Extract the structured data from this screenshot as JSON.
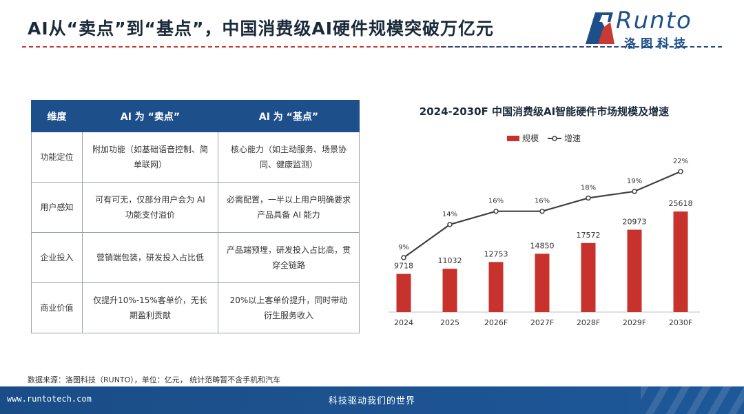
{
  "header": {
    "title": "AI从“卖点”到“基点”，中国消费级AI硬件规模突破万亿元",
    "logo_brand": "Runto",
    "logo_cn": "洛图科技"
  },
  "table": {
    "headers": [
      "维度",
      "AI 为 “卖点”",
      "AI 为 “基点”"
    ],
    "rows": [
      [
        "功能定位",
        "附加功能（如基础语音控制、简单联网）",
        "核心能力（如主动服务、场景协同、健康监测）"
      ],
      [
        "用户感知",
        "可有可无，仅部分用户会为 AI 功能支付溢价",
        "必需配置，一半以上用户明确要求产品具备 AI 能力"
      ],
      [
        "企业投入",
        "营销端包装，研发投入占比低",
        "产品端预埋，研发投入占比高，贯穿全链路"
      ],
      [
        "商业价值",
        "仅提升10%-15%客单价，无长期盈利贡献",
        "20%以上客单价提升，同时带动衍生服务收入"
      ]
    ]
  },
  "chart_data": {
    "type": "bar",
    "title": "2024-2030F 中国消费级AI智能硬件市场规模及增速",
    "categories": [
      "2024",
      "2025",
      "2026F",
      "2027F",
      "2028F",
      "2029F",
      "2030F"
    ],
    "series": [
      {
        "name": "规模",
        "type": "bar",
        "values": [
          9718,
          11032,
          12753,
          14850,
          17572,
          20973,
          25618
        ],
        "color": "#c8322c"
      },
      {
        "name": "增速",
        "type": "line",
        "values": [
          9,
          14,
          16,
          16,
          18,
          19,
          22
        ],
        "labels": [
          "9%",
          "14%",
          "16%",
          "16%",
          "18%",
          "19%",
          "22%"
        ],
        "color": "#404040"
      }
    ],
    "legend_position": "top-center",
    "grid": false
  },
  "source_note": "数据来源：洛图科技（RUNTO），单位：亿元， 统计范畴暂不含手机和汽车",
  "footer": {
    "url": "www.runtotech.com",
    "slogan": "科技驱动我们的世界"
  }
}
